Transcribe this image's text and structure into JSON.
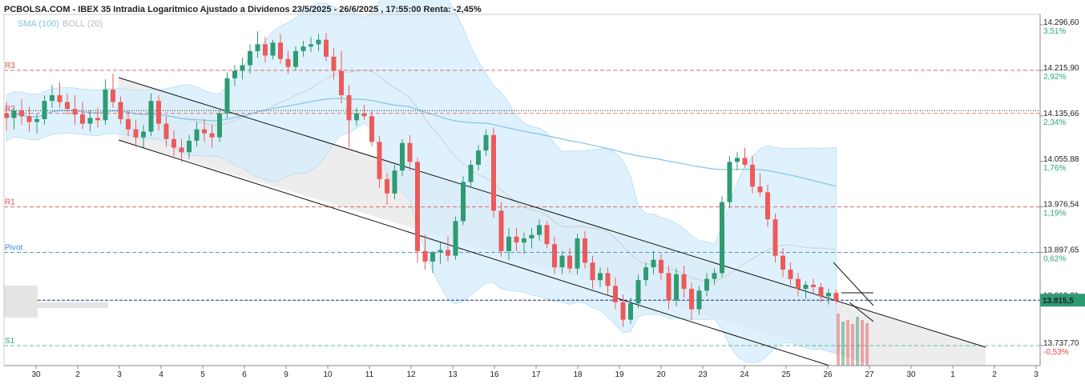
{
  "chart_data": {
    "type": "candlestick",
    "title": "PCBOLSA.COM - IBEX 35 Intradia Logaritmico Ajustado a Dividenos 23/5/2025 - 26/6/2025 , 17:55:00 Renta: -2,45%",
    "indicators": [
      {
        "label": "SMA (100)",
        "color": "#7fc4ec"
      },
      {
        "label": "BOLL (20)",
        "color": "#bbbbbb"
      }
    ],
    "y_scale": "log",
    "y_ticks": [
      {
        "value": 14296.6,
        "label": "14.296,60",
        "pct": "3,51%"
      },
      {
        "value": 14215.9,
        "label": "14.215,90",
        "pct": "2,92%"
      },
      {
        "value": 14135.66,
        "label": "14.135,66",
        "pct": "2,34%"
      },
      {
        "value": 14055.88,
        "label": "14.055,88",
        "pct": "1,76%"
      },
      {
        "value": 13976.54,
        "label": "13.976,54",
        "pct": "1,19%"
      },
      {
        "value": 13897.65,
        "label": "13.897,65",
        "pct": "0,62%"
      },
      {
        "value": 13819.21,
        "label": "13.819,21",
        "pct": ""
      },
      {
        "value": 13737.7,
        "label": "13.737,70",
        "pct": "-0,53%"
      }
    ],
    "x_ticks": [
      "30",
      "2",
      "3",
      "4",
      "5",
      "6",
      "9",
      "10",
      "11",
      "12",
      "13",
      "16",
      "17",
      "18",
      "19",
      "20",
      "23",
      "24",
      "25",
      "26",
      "27",
      "30",
      "1",
      "2",
      "3"
    ],
    "levels": [
      {
        "label": "R3",
        "value": 14215.9,
        "color": "#d9534f"
      },
      {
        "label": "R2",
        "value": 14140.0,
        "color": "#d9534f"
      },
      {
        "label": "R1",
        "value": 13976.5,
        "color": "#d9534f"
      },
      {
        "label": "Pivot",
        "value": 13897.7,
        "color": "#3a87c8"
      },
      {
        "label": "S1",
        "value": 13737.7,
        "color": "#2aa876"
      }
    ],
    "last_price": {
      "value": 13815.5,
      "label": "13.815,5"
    },
    "reference_line": 14145.0,
    "candles": [
      {
        "o": 14140,
        "h": 14160,
        "l": 14110,
        "c": 14132
      },
      {
        "o": 14132,
        "h": 14150,
        "l": 14112,
        "c": 14145
      },
      {
        "o": 14145,
        "h": 14165,
        "l": 14120,
        "c": 14135
      },
      {
        "o": 14135,
        "h": 14152,
        "l": 14108,
        "c": 14125
      },
      {
        "o": 14125,
        "h": 14140,
        "l": 14105,
        "c": 14130
      },
      {
        "o": 14130,
        "h": 14172,
        "l": 14120,
        "c": 14162
      },
      {
        "o": 14162,
        "h": 14190,
        "l": 14150,
        "c": 14172
      },
      {
        "o": 14172,
        "h": 14195,
        "l": 14150,
        "c": 14160
      },
      {
        "o": 14160,
        "h": 14175,
        "l": 14138,
        "c": 14148
      },
      {
        "o": 14148,
        "h": 14172,
        "l": 14120,
        "c": 14138
      },
      {
        "o": 14138,
        "h": 14160,
        "l": 14112,
        "c": 14122
      },
      {
        "o": 14122,
        "h": 14145,
        "l": 14108,
        "c": 14132
      },
      {
        "o": 14132,
        "h": 14150,
        "l": 14115,
        "c": 14128
      },
      {
        "o": 14128,
        "h": 14200,
        "l": 14120,
        "c": 14182
      },
      {
        "o": 14182,
        "h": 14210,
        "l": 14150,
        "c": 14160
      },
      {
        "o": 14160,
        "h": 14170,
        "l": 14122,
        "c": 14130
      },
      {
        "o": 14130,
        "h": 14145,
        "l": 14100,
        "c": 14112
      },
      {
        "o": 14112,
        "h": 14128,
        "l": 14082,
        "c": 14098
      },
      {
        "o": 14098,
        "h": 14120,
        "l": 14080,
        "c": 14108
      },
      {
        "o": 14108,
        "h": 14175,
        "l": 14100,
        "c": 14162
      },
      {
        "o": 14162,
        "h": 14172,
        "l": 14110,
        "c": 14122
      },
      {
        "o": 14122,
        "h": 14135,
        "l": 14082,
        "c": 14095
      },
      {
        "o": 14095,
        "h": 14110,
        "l": 14065,
        "c": 14080
      },
      {
        "o": 14080,
        "h": 14095,
        "l": 14055,
        "c": 14072
      },
      {
        "o": 14072,
        "h": 14102,
        "l": 14060,
        "c": 14092
      },
      {
        "o": 14092,
        "h": 14125,
        "l": 14082,
        "c": 14112
      },
      {
        "o": 14112,
        "h": 14130,
        "l": 14090,
        "c": 14105
      },
      {
        "o": 14105,
        "h": 14120,
        "l": 14080,
        "c": 14098
      },
      {
        "o": 14098,
        "h": 14145,
        "l": 14090,
        "c": 14140
      },
      {
        "o": 14140,
        "h": 14212,
        "l": 14132,
        "c": 14202
      },
      {
        "o": 14202,
        "h": 14225,
        "l": 14188,
        "c": 14215
      },
      {
        "o": 14215,
        "h": 14238,
        "l": 14200,
        "c": 14225
      },
      {
        "o": 14225,
        "h": 14262,
        "l": 14210,
        "c": 14250
      },
      {
        "o": 14250,
        "h": 14285,
        "l": 14238,
        "c": 14262
      },
      {
        "o": 14262,
        "h": 14275,
        "l": 14230,
        "c": 14242
      },
      {
        "o": 14242,
        "h": 14270,
        "l": 14235,
        "c": 14265
      },
      {
        "o": 14265,
        "h": 14280,
        "l": 14228,
        "c": 14236
      },
      {
        "o": 14236,
        "h": 14250,
        "l": 14210,
        "c": 14222
      },
      {
        "o": 14222,
        "h": 14258,
        "l": 14215,
        "c": 14250
      },
      {
        "o": 14250,
        "h": 14268,
        "l": 14240,
        "c": 14258
      },
      {
        "o": 14258,
        "h": 14275,
        "l": 14248,
        "c": 14262
      },
      {
        "o": 14262,
        "h": 14280,
        "l": 14250,
        "c": 14270
      },
      {
        "o": 14270,
        "h": 14282,
        "l": 14232,
        "c": 14240
      },
      {
        "o": 14240,
        "h": 14255,
        "l": 14200,
        "c": 14215
      },
      {
        "o": 14215,
        "h": 14250,
        "l": 14158,
        "c": 14172
      },
      {
        "o": 14172,
        "h": 14190,
        "l": 14080,
        "c": 14128
      },
      {
        "o": 14128,
        "h": 14150,
        "l": 14118,
        "c": 14140
      },
      {
        "o": 14140,
        "h": 14155,
        "l": 14128,
        "c": 14135
      },
      {
        "o": 14135,
        "h": 14145,
        "l": 14082,
        "c": 14090
      },
      {
        "o": 14090,
        "h": 14100,
        "l": 14010,
        "c": 14025
      },
      {
        "o": 14025,
        "h": 14035,
        "l": 13980,
        "c": 14000
      },
      {
        "o": 14000,
        "h": 14050,
        "l": 13990,
        "c": 14040
      },
      {
        "o": 14040,
        "h": 14095,
        "l": 14030,
        "c": 14088
      },
      {
        "o": 14088,
        "h": 14102,
        "l": 14040,
        "c": 14055
      },
      {
        "o": 14055,
        "h": 14062,
        "l": 13880,
        "c": 13900
      },
      {
        "o": 13900,
        "h": 13928,
        "l": 13868,
        "c": 13882
      },
      {
        "o": 13882,
        "h": 13900,
        "l": 13862,
        "c": 13898
      },
      {
        "o": 13898,
        "h": 13915,
        "l": 13878,
        "c": 13902
      },
      {
        "o": 13902,
        "h": 13925,
        "l": 13882,
        "c": 13892
      },
      {
        "o": 13892,
        "h": 13960,
        "l": 13885,
        "c": 13952
      },
      {
        "o": 13952,
        "h": 14030,
        "l": 13945,
        "c": 14020
      },
      {
        "o": 14020,
        "h": 14058,
        "l": 14010,
        "c": 14050
      },
      {
        "o": 14050,
        "h": 14085,
        "l": 14040,
        "c": 14075
      },
      {
        "o": 14075,
        "h": 14112,
        "l": 14065,
        "c": 14102
      },
      {
        "o": 14102,
        "h": 14115,
        "l": 13958,
        "c": 13970
      },
      {
        "o": 13970,
        "h": 13985,
        "l": 13890,
        "c": 13900
      },
      {
        "o": 13900,
        "h": 13940,
        "l": 13885,
        "c": 13925
      },
      {
        "o": 13925,
        "h": 13940,
        "l": 13900,
        "c": 13915
      },
      {
        "o": 13915,
        "h": 13932,
        "l": 13895,
        "c": 13922
      },
      {
        "o": 13922,
        "h": 13940,
        "l": 13905,
        "c": 13928
      },
      {
        "o": 13928,
        "h": 13955,
        "l": 13918,
        "c": 13945
      },
      {
        "o": 13945,
        "h": 13952,
        "l": 13905,
        "c": 13912
      },
      {
        "o": 13912,
        "h": 13925,
        "l": 13860,
        "c": 13872
      },
      {
        "o": 13872,
        "h": 13900,
        "l": 13860,
        "c": 13892
      },
      {
        "o": 13892,
        "h": 13905,
        "l": 13862,
        "c": 13870
      },
      {
        "o": 13870,
        "h": 13930,
        "l": 13860,
        "c": 13922
      },
      {
        "o": 13922,
        "h": 13935,
        "l": 13870,
        "c": 13880
      },
      {
        "o": 13880,
        "h": 13892,
        "l": 13835,
        "c": 13850
      },
      {
        "o": 13850,
        "h": 13872,
        "l": 13838,
        "c": 13862
      },
      {
        "o": 13862,
        "h": 13872,
        "l": 13825,
        "c": 13840
      },
      {
        "o": 13840,
        "h": 13855,
        "l": 13800,
        "c": 13812
      },
      {
        "o": 13812,
        "h": 13825,
        "l": 13770,
        "c": 13782
      },
      {
        "o": 13782,
        "h": 13820,
        "l": 13775,
        "c": 13810
      },
      {
        "o": 13810,
        "h": 13860,
        "l": 13802,
        "c": 13850
      },
      {
        "o": 13850,
        "h": 13880,
        "l": 13840,
        "c": 13872
      },
      {
        "o": 13872,
        "h": 13900,
        "l": 13860,
        "c": 13885
      },
      {
        "o": 13885,
        "h": 13895,
        "l": 13850,
        "c": 13862
      },
      {
        "o": 13862,
        "h": 13875,
        "l": 13800,
        "c": 13815
      },
      {
        "o": 13815,
        "h": 13870,
        "l": 13805,
        "c": 13860
      },
      {
        "o": 13860,
        "h": 13875,
        "l": 13820,
        "c": 13835
      },
      {
        "o": 13835,
        "h": 13845,
        "l": 13782,
        "c": 13800
      },
      {
        "o": 13800,
        "h": 13840,
        "l": 13790,
        "c": 13832
      },
      {
        "o": 13832,
        "h": 13862,
        "l": 13822,
        "c": 13852
      },
      {
        "o": 13852,
        "h": 13870,
        "l": 13842,
        "c": 13862
      },
      {
        "o": 13862,
        "h": 13995,
        "l": 13855,
        "c": 13985
      },
      {
        "o": 13985,
        "h": 14065,
        "l": 13975,
        "c": 14055
      },
      {
        "o": 14055,
        "h": 14072,
        "l": 14040,
        "c": 14062
      },
      {
        "o": 14062,
        "h": 14080,
        "l": 14045,
        "c": 14050
      },
      {
        "o": 14050,
        "h": 14065,
        "l": 14000,
        "c": 14012
      },
      {
        "o": 14012,
        "h": 14035,
        "l": 13995,
        "c": 14002
      },
      {
        "o": 14002,
        "h": 14015,
        "l": 13942,
        "c": 13955
      },
      {
        "o": 13955,
        "h": 13965,
        "l": 13880,
        "c": 13892
      },
      {
        "o": 13892,
        "h": 13905,
        "l": 13855,
        "c": 13868
      },
      {
        "o": 13868,
        "h": 13880,
        "l": 13842,
        "c": 13852
      },
      {
        "o": 13852,
        "h": 13862,
        "l": 13822,
        "c": 13835
      },
      {
        "o": 13835,
        "h": 13848,
        "l": 13818,
        "c": 13842
      },
      {
        "o": 13842,
        "h": 13852,
        "l": 13828,
        "c": 13838
      },
      {
        "o": 13838,
        "h": 13845,
        "l": 13812,
        "c": 13822
      },
      {
        "o": 13822,
        "h": 13835,
        "l": 13808,
        "c": 13828
      },
      {
        "o": 13828,
        "h": 13834,
        "l": 13810,
        "c": 13815
      }
    ]
  }
}
